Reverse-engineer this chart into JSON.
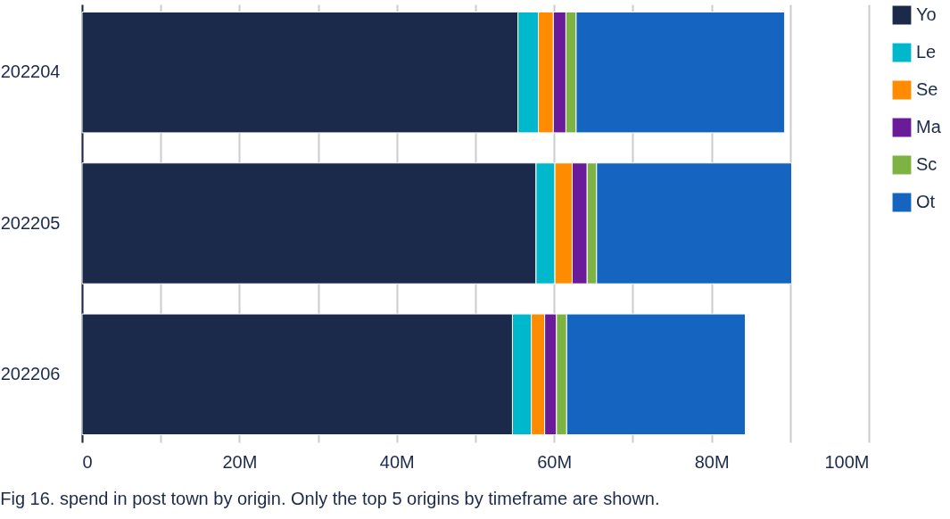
{
  "chart_data": {
    "type": "bar",
    "orientation": "horizontal",
    "stacked": true,
    "categories": [
      "202204",
      "202205",
      "202206"
    ],
    "series": [
      {
        "name": "Yo",
        "color": "#1b2a4a",
        "values": [
          55.4,
          57.7,
          54.7
        ]
      },
      {
        "name": "Le",
        "color": "#00b8cc",
        "values": [
          2.6,
          2.4,
          2.4
        ]
      },
      {
        "name": "Se",
        "color": "#ff8c00",
        "values": [
          1.9,
          2.2,
          1.7
        ]
      },
      {
        "name": "Ma",
        "color": "#6a1b9a",
        "values": [
          1.6,
          1.9,
          1.5
        ]
      },
      {
        "name": "Sc",
        "color": "#7cb342",
        "values": [
          1.3,
          1.2,
          1.3
        ]
      },
      {
        "name": "Ot",
        "color": "#1565c0",
        "values": [
          26.5,
          24.8,
          22.7
        ]
      }
    ],
    "xlim": [
      0,
      100
    ],
    "xticks": [
      0,
      {
        "value": 10,
        "label": null
      },
      {
        "value": 20,
        "label": "20M"
      },
      {
        "value": 30,
        "label": null
      },
      {
        "value": 40,
        "label": "40M"
      },
      {
        "value": 50,
        "label": null
      },
      {
        "value": 60,
        "label": "60M"
      },
      {
        "value": 70,
        "label": null
      },
      {
        "value": 80,
        "label": "80M"
      },
      {
        "value": 90,
        "label": null
      },
      {
        "value": 100,
        "label": "100M"
      }
    ],
    "grid": "x",
    "legend": "top right",
    "annotations": [
      "Fig 16. spend in post town by origin. Only the top 5 origins by timeframe are shown."
    ]
  }
}
